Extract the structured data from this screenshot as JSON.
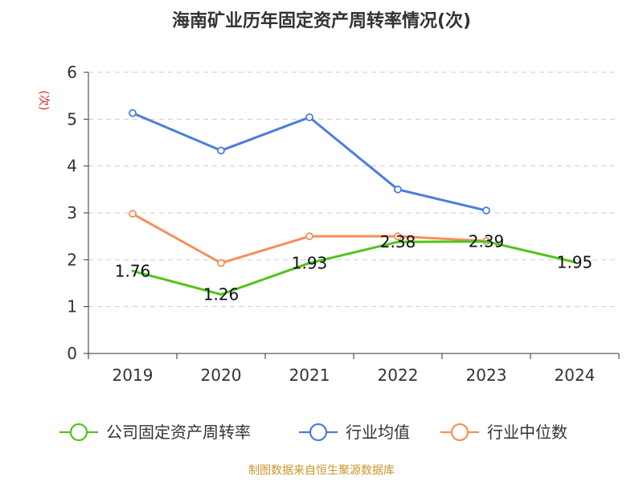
{
  "chart_data": {
    "type": "line",
    "title": "海南矿业历年固定资产周转率情况(次)",
    "ylabel": "(次)",
    "xlabel": "",
    "categories": [
      "2019",
      "2020",
      "2021",
      "2022",
      "2023",
      "2024"
    ],
    "ylim": [
      0,
      6
    ],
    "yticks": [
      0,
      1,
      2,
      3,
      4,
      5,
      6
    ],
    "grid": true,
    "legend_position": "bottom",
    "series": [
      {
        "name": "公司固定资产周转率",
        "color": "#52c41a",
        "values": [
          1.76,
          1.26,
          1.93,
          2.38,
          2.39,
          1.95
        ],
        "labels": [
          "1.76",
          "1.26",
          "1.93",
          "2.38",
          "2.39",
          "1.95"
        ],
        "markers": false
      },
      {
        "name": "行业均值",
        "color": "#4a7fd8",
        "values": [
          5.13,
          4.33,
          5.04,
          3.5,
          3.05,
          null
        ],
        "markers": true
      },
      {
        "name": "行业中位数",
        "color": "#f4905a",
        "values": [
          2.98,
          1.93,
          2.5,
          2.5,
          2.4,
          null
        ],
        "markers": true
      }
    ],
    "source": "制图数据来自恒生聚源数据库"
  }
}
